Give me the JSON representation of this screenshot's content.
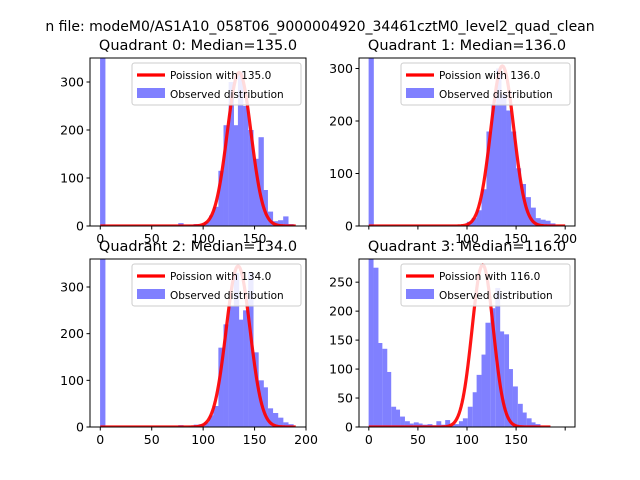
{
  "suptitle": "n file: modeM0/AS1A10_058T06_9000004920_34461cztM0_level2_quad_clean",
  "legend": {
    "fit_prefix": "Poission with ",
    "observed_label": "Observed distribution"
  },
  "colors": {
    "fit": "#ff0000",
    "observed": "#8080ff",
    "axis": "#000000",
    "background": "#ffffff"
  },
  "chart_data": [
    {
      "type": "bar",
      "title": "Quadrant 0: Median=135.0",
      "median": "135.0",
      "xlim": [
        -10,
        200
      ],
      "ylim": [
        0,
        350
      ],
      "xticks": [
        0,
        50,
        100,
        150,
        200
      ],
      "yticks": [
        0,
        100,
        200,
        300
      ],
      "xtick_labels": [
        "0",
        "50",
        "100",
        "150",
        ""
      ],
      "ytick_labels": [
        "0",
        "100",
        "200",
        "300"
      ],
      "legend_placement": "top-right",
      "bin_width": 4.8,
      "histogram": [
        {
          "x": 0,
          "y": 350
        },
        {
          "x": 76,
          "y": 6
        },
        {
          "x": 86,
          "y": 2
        },
        {
          "x": 91,
          "y": 4
        },
        {
          "x": 96,
          "y": 3
        },
        {
          "x": 101,
          "y": 8
        },
        {
          "x": 106,
          "y": 22
        },
        {
          "x": 110,
          "y": 40
        },
        {
          "x": 115,
          "y": 115
        },
        {
          "x": 120,
          "y": 210
        },
        {
          "x": 125,
          "y": 300
        },
        {
          "x": 130,
          "y": 210
        },
        {
          "x": 134,
          "y": 320
        },
        {
          "x": 139,
          "y": 250
        },
        {
          "x": 144,
          "y": 200
        },
        {
          "x": 149,
          "y": 140
        },
        {
          "x": 154,
          "y": 185
        },
        {
          "x": 158,
          "y": 75
        },
        {
          "x": 163,
          "y": 30
        },
        {
          "x": 168,
          "y": 10
        },
        {
          "x": 173,
          "y": 12
        },
        {
          "x": 178,
          "y": 20
        },
        {
          "x": 183,
          "y": 4
        }
      ],
      "fit": {
        "mean": 135.0,
        "sigma": 11.6,
        "peak": 320,
        "range": [
          0,
          190
        ]
      }
    },
    {
      "type": "bar",
      "title": "Quadrant 1: Median=136.0",
      "median": "136.0",
      "xlim": [
        -10,
        210
      ],
      "ylim": [
        0,
        320
      ],
      "xticks": [
        0,
        50,
        100,
        150,
        200
      ],
      "yticks": [
        0,
        100,
        200,
        300
      ],
      "xtick_labels": [
        "",
        "",
        "100",
        "150",
        "200"
      ],
      "ytick_labels": [
        "0",
        "100",
        "200",
        "300"
      ],
      "legend_placement": "top-right",
      "bin_width": 4.9,
      "histogram": [
        {
          "x": 0,
          "y": 320
        },
        {
          "x": 100,
          "y": 8
        },
        {
          "x": 105,
          "y": 15
        },
        {
          "x": 110,
          "y": 30
        },
        {
          "x": 115,
          "y": 70
        },
        {
          "x": 120,
          "y": 180
        },
        {
          "x": 125,
          "y": 230
        },
        {
          "x": 130,
          "y": 300
        },
        {
          "x": 135,
          "y": 250
        },
        {
          "x": 140,
          "y": 220
        },
        {
          "x": 145,
          "y": 180
        },
        {
          "x": 150,
          "y": 110
        },
        {
          "x": 155,
          "y": 80
        },
        {
          "x": 160,
          "y": 55
        },
        {
          "x": 165,
          "y": 35
        },
        {
          "x": 170,
          "y": 15
        },
        {
          "x": 175,
          "y": 12
        },
        {
          "x": 180,
          "y": 10
        },
        {
          "x": 185,
          "y": 5
        }
      ],
      "fit": {
        "mean": 136.0,
        "sigma": 11.7,
        "peak": 305,
        "range": [
          0,
          200
        ]
      }
    },
    {
      "type": "bar",
      "title": "Quadrant 2: Median=134.0",
      "median": "134.0",
      "xlim": [
        -10,
        200
      ],
      "ylim": [
        0,
        360
      ],
      "xticks": [
        0,
        50,
        100,
        150,
        200
      ],
      "yticks": [
        0,
        100,
        200,
        300
      ],
      "xtick_labels": [
        "0",
        "50",
        "100",
        "150",
        "200"
      ],
      "ytick_labels": [
        "0",
        "100",
        "200",
        "300"
      ],
      "legend_placement": "top-right",
      "bin_width": 4.8,
      "histogram": [
        {
          "x": 0,
          "y": 360
        },
        {
          "x": 76,
          "y": 4
        },
        {
          "x": 86,
          "y": 3
        },
        {
          "x": 91,
          "y": 5
        },
        {
          "x": 96,
          "y": 6
        },
        {
          "x": 101,
          "y": 10
        },
        {
          "x": 106,
          "y": 25
        },
        {
          "x": 110,
          "y": 45
        },
        {
          "x": 115,
          "y": 170
        },
        {
          "x": 120,
          "y": 220
        },
        {
          "x": 125,
          "y": 260
        },
        {
          "x": 130,
          "y": 330
        },
        {
          "x": 134,
          "y": 230
        },
        {
          "x": 139,
          "y": 250
        },
        {
          "x": 144,
          "y": 330
        },
        {
          "x": 149,
          "y": 160
        },
        {
          "x": 154,
          "y": 100
        },
        {
          "x": 158,
          "y": 85
        },
        {
          "x": 163,
          "y": 40
        },
        {
          "x": 168,
          "y": 30
        },
        {
          "x": 173,
          "y": 20
        },
        {
          "x": 178,
          "y": 10
        },
        {
          "x": 183,
          "y": 6
        }
      ],
      "fit": {
        "mean": 134.0,
        "sigma": 11.6,
        "peak": 345,
        "range": [
          0,
          190
        ]
      }
    },
    {
      "type": "bar",
      "title": "Quadrant 3: Median=116.0",
      "median": "116.0",
      "xlim": [
        -10,
        210
      ],
      "ylim": [
        0,
        290
      ],
      "xticks": [
        0,
        50,
        100,
        150,
        200
      ],
      "yticks": [
        0,
        50,
        100,
        150,
        200,
        250
      ],
      "xtick_labels": [
        "0",
        "50",
        "100",
        "150",
        ""
      ],
      "ytick_labels": [
        "0",
        "50",
        "100",
        "150",
        "200",
        "250"
      ],
      "legend_placement": "top-right",
      "bin_width": 4.6,
      "histogram": [
        {
          "x": 0,
          "y": 290
        },
        {
          "x": 5,
          "y": 275
        },
        {
          "x": 9,
          "y": 145
        },
        {
          "x": 14,
          "y": 135
        },
        {
          "x": 18,
          "y": 95
        },
        {
          "x": 23,
          "y": 35
        },
        {
          "x": 27,
          "y": 30
        },
        {
          "x": 32,
          "y": 18
        },
        {
          "x": 37,
          "y": 10
        },
        {
          "x": 41,
          "y": 6
        },
        {
          "x": 46,
          "y": 8
        },
        {
          "x": 50,
          "y": 6
        },
        {
          "x": 55,
          "y": 4
        },
        {
          "x": 60,
          "y": 5
        },
        {
          "x": 64,
          "y": 3
        },
        {
          "x": 69,
          "y": 10
        },
        {
          "x": 73,
          "y": 4
        },
        {
          "x": 78,
          "y": 12
        },
        {
          "x": 82,
          "y": 3
        },
        {
          "x": 87,
          "y": 5
        },
        {
          "x": 92,
          "y": 10
        },
        {
          "x": 96,
          "y": 15
        },
        {
          "x": 101,
          "y": 35
        },
        {
          "x": 106,
          "y": 60
        },
        {
          "x": 110,
          "y": 90
        },
        {
          "x": 115,
          "y": 125
        },
        {
          "x": 119,
          "y": 180
        },
        {
          "x": 124,
          "y": 205
        },
        {
          "x": 129,
          "y": 240
        },
        {
          "x": 133,
          "y": 165
        },
        {
          "x": 138,
          "y": 160
        },
        {
          "x": 142,
          "y": 100
        },
        {
          "x": 147,
          "y": 70
        },
        {
          "x": 152,
          "y": 40
        },
        {
          "x": 156,
          "y": 25
        },
        {
          "x": 161,
          "y": 15
        },
        {
          "x": 165,
          "y": 8
        },
        {
          "x": 170,
          "y": 5
        }
      ],
      "fit": {
        "mean": 116.0,
        "sigma": 10.8,
        "peak": 280,
        "range": [
          0,
          185
        ]
      }
    }
  ]
}
